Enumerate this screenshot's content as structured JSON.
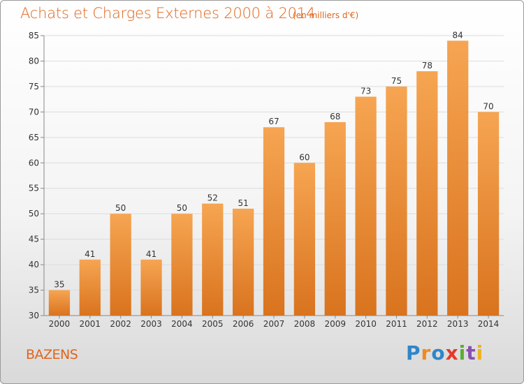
{
  "header": {
    "title": "Achats et Charges Externes 2000 à 2014",
    "subtitle": "(en milliers d'€)"
  },
  "footer": {
    "commune": "BAZENS",
    "logo_text": "Proxiti"
  },
  "colors": {
    "title": "#e0641c",
    "bar_top": "#f6a552",
    "bar_bottom": "#d9731e",
    "grid": "#dcdcdc"
  },
  "chart_data": {
    "type": "bar",
    "title": "Achats et Charges Externes 2000 à 2014",
    "subtitle": "(en milliers d'€)",
    "xlabel": "",
    "ylabel": "",
    "categories": [
      "2000",
      "2001",
      "2002",
      "2003",
      "2004",
      "2005",
      "2006",
      "2007",
      "2008",
      "2009",
      "2010",
      "2011",
      "2012",
      "2013",
      "2014"
    ],
    "values": [
      35,
      41,
      50,
      41,
      50,
      52,
      51,
      67,
      60,
      68,
      73,
      75,
      78,
      84,
      70
    ],
    "ylim": [
      30,
      85
    ],
    "yticks": [
      30,
      35,
      40,
      45,
      50,
      55,
      60,
      65,
      70,
      75,
      80,
      85
    ],
    "grid": true,
    "legend": "none"
  }
}
